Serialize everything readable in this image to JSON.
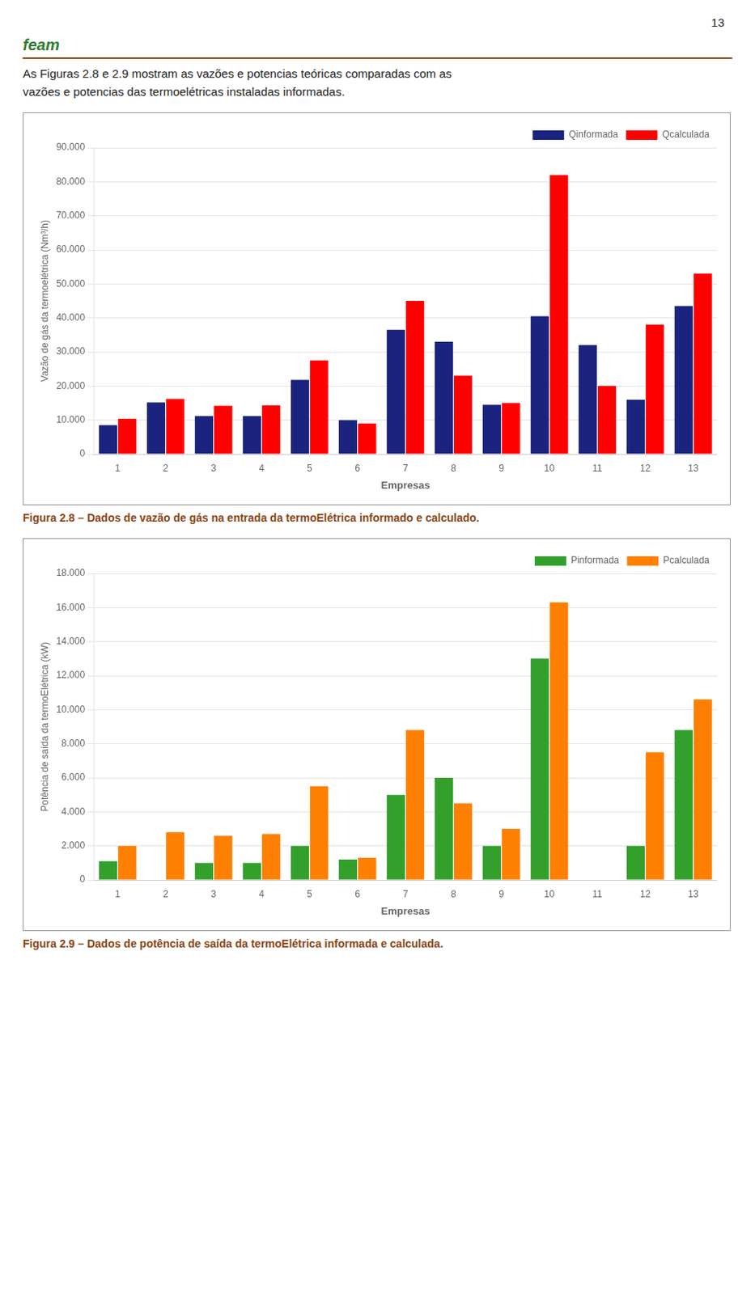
{
  "chart_data": [
    {
      "type": "bar",
      "title": "Figura 2.8 – Dados de vazão de gás na entrada da termoElétrica informado e calculado.",
      "annotations": [
        "13",
        "feam",
        "As Figuras 2.8 e 2.9 mostram as vazões e potencias teóricas comparadas com as",
        "vazões e potencias das termoelétricas instaladas informadas."
      ],
      "x_label": "Empresas",
      "y_label": "Vazão de gás da termoelétrica (Nm³/h)",
      "categories": [
        "1",
        "2",
        "3",
        "4",
        "5",
        "6",
        "7",
        "8",
        "9",
        "10",
        "11",
        "12",
        "13"
      ],
      "series": [
        {
          "name": "Qinformada",
          "color": "#1a237e",
          "values": [
            8500,
            15200,
            11200,
            11200,
            21800,
            10000,
            36500,
            33000,
            14500,
            40500,
            32000,
            16000,
            43500
          ]
        },
        {
          "name": "Qcalculada",
          "color": "#ff0000",
          "values": [
            10400,
            16200,
            14200,
            14300,
            27500,
            9000,
            45000,
            23000,
            15000,
            82000,
            20000,
            38000,
            53000
          ]
        }
      ],
      "ylim": [
        0,
        90000
      ],
      "yticks": [
        0,
        {
          "value": 10000,
          "label": "10.000"
        },
        {
          "value": 20000,
          "label": "20.000"
        },
        {
          "value": 30000,
          "label": "30.000"
        },
        {
          "value": 40000,
          "label": "40.000"
        },
        {
          "value": 50000,
          "label": "50.000"
        },
        {
          "value": 60000,
          "label": "60.000"
        },
        {
          "value": 70000,
          "label": "70.000"
        },
        {
          "value": 80000,
          "label": "80.000"
        },
        {
          "value": 90000,
          "label": "90.000"
        }
      ],
      "grid": true,
      "legend": "upper right"
    },
    {
      "type": "bar",
      "title": "Figura 2.9 – Dados de potência de saída da termoElétrica informada e calculada.",
      "x_label": "Empresas",
      "y_label": "Potência de saída da termoElétrica (kW)",
      "categories": [
        "1",
        "2",
        "3",
        "4",
        "5",
        "6",
        "7",
        "8",
        "9",
        "10",
        "11",
        "12",
        "13"
      ],
      "series": [
        {
          "name": "Pinformada",
          "color": "#33a02c",
          "values": [
            1100,
            0,
            1000,
            1000,
            2000,
            1200,
            5000,
            6000,
            2000,
            13000,
            0,
            2000,
            8800
          ]
        },
        {
          "name": "Pcalculada",
          "color": "#ff7f00",
          "values": [
            2000,
            2800,
            2600,
            2700,
            5500,
            1300,
            8800,
            4500,
            3000,
            16300,
            0,
            7500,
            10600
          ]
        }
      ],
      "ylim": [
        0,
        18000
      ],
      "yticks": [
        0,
        {
          "value": 2000,
          "label": "2.000"
        },
        {
          "value": 4000,
          "label": "4.000"
        },
        {
          "value": 6000,
          "label": "6.000"
        },
        {
          "value": 8000,
          "label": "8.000"
        },
        {
          "value": 10000,
          "label": "10.000"
        },
        {
          "value": 12000,
          "label": "12.000"
        },
        {
          "value": 14000,
          "label": "14.000"
        },
        {
          "value": 16000,
          "label": "16.000"
        },
        {
          "value": 18000,
          "label": "18.000"
        }
      ],
      "grid": true,
      "legend": "upper right"
    }
  ]
}
